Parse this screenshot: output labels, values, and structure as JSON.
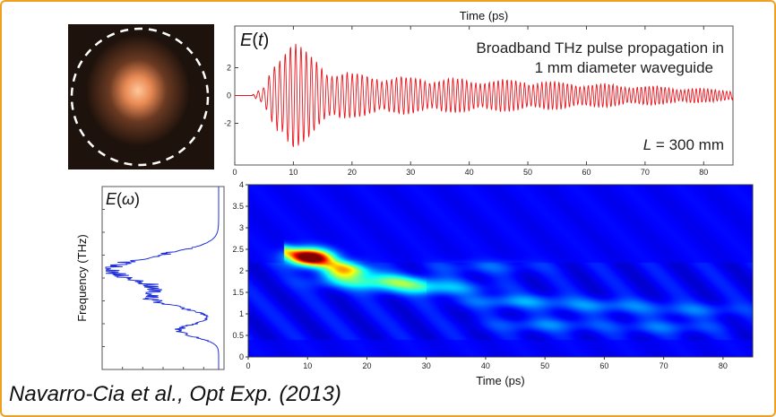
{
  "citation": "Navarro-Cia et al., Opt Exp. (2013)",
  "chart_data": [
    {
      "type": "line",
      "panel": "time-domain",
      "title_lines": [
        "Broadband THz pulse propagation in",
        "1 mm diameter waveguide"
      ],
      "ylabel_italic": "E(t)",
      "xlabel": "Time (ps)",
      "annotation": "L = 300 mm",
      "xlim": [
        0,
        85
      ],
      "xticks": [
        0,
        10,
        20,
        30,
        40,
        50,
        60,
        70,
        80
      ],
      "yticks": [
        2,
        0,
        -2
      ],
      "ylim": [
        -5,
        5
      ],
      "series": [
        {
          "color": "#e8141c",
          "envelope": [
            [
              3,
              0.05
            ],
            [
              5,
              0.6
            ],
            [
              7,
              3.0
            ],
            [
              9,
              4.3
            ],
            [
              10,
              4.2
            ],
            [
              12,
              3.2
            ],
            [
              15,
              2.2
            ],
            [
              20,
              1.6
            ],
            [
              30,
              1.3
            ],
            [
              40,
              1.2
            ],
            [
              50,
              1.1
            ],
            [
              60,
              0.9
            ],
            [
              70,
              0.7
            ],
            [
              80,
              0.5
            ],
            [
              85,
              0.4
            ]
          ]
        }
      ]
    },
    {
      "type": "line",
      "panel": "spectrum",
      "ylabel_italic": "E(ω)",
      "ylabel": "Frequency (THz)",
      "series": [
        {
          "color": "#1f2fdc",
          "peak_frequency": 2.2
        }
      ]
    },
    {
      "type": "heatmap",
      "panel": "spectrogram",
      "xlabel": "Time (ps)",
      "xlim": [
        0,
        85
      ],
      "ylim": [
        0,
        4
      ],
      "xticks": [
        0,
        10,
        20,
        30,
        40,
        50,
        60,
        70,
        80
      ],
      "yticks": [
        0,
        0.5,
        1,
        1.5,
        2,
        2.5,
        3,
        3.5,
        4
      ],
      "colormap": "jet",
      "background": "#0a10a0",
      "blobs": [
        {
          "t": 10.5,
          "f": 2.32,
          "amp": 1.0
        },
        {
          "t": 16,
          "f": 2.0,
          "amp": 0.55
        },
        {
          "t": 22,
          "f": 1.75,
          "amp": 0.35
        },
        {
          "t": 30,
          "f": 1.6,
          "amp": 0.25
        },
        {
          "t": 45,
          "f": 1.3,
          "amp": 0.18
        },
        {
          "t": 60,
          "f": 1.2,
          "amp": 0.15
        },
        {
          "t": 75,
          "f": 1.1,
          "amp": 0.12
        },
        {
          "t": 50,
          "f": 0.75,
          "amp": 0.14
        },
        {
          "t": 70,
          "f": 0.7,
          "amp": 0.12
        },
        {
          "t": 40,
          "f": 2.1,
          "amp": 0.1
        }
      ]
    }
  ],
  "beam_image": {
    "ring": "dashed-circle",
    "spot_color": "#f5a56a",
    "background": "#1e120c"
  }
}
